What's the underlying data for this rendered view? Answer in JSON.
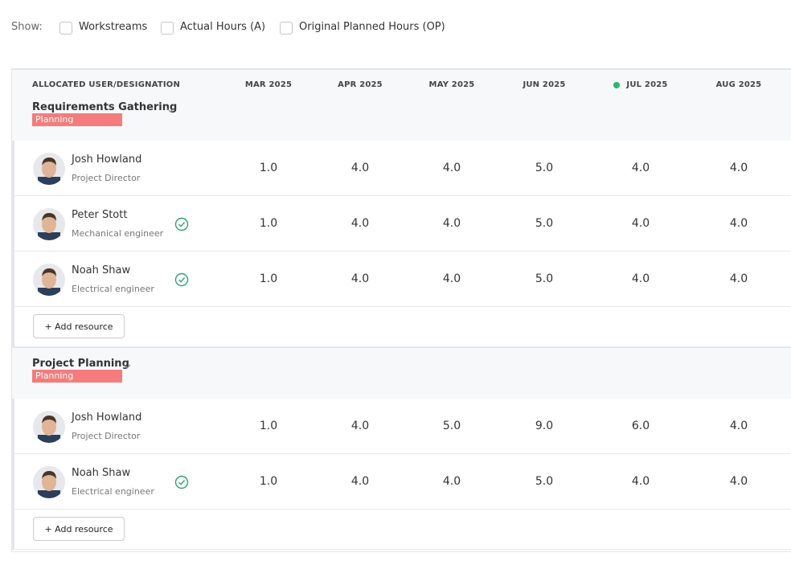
{
  "toolbar": {
    "label": "Show:",
    "options": [
      "Workstreams",
      "Actual Hours (A)",
      "Original Planned Hours (OP)"
    ]
  },
  "table": {
    "columns": [
      "ALLOCATED USER/DESIGNATION",
      "MAR 2025",
      "APR 2025",
      "MAY 2025",
      "JUN 2025",
      "JUL 2025",
      "AUG 2025"
    ],
    "groups": [
      {
        "name": "Requirements Gathering",
        "status": "Planning",
        "action": "+ Add resource",
        "rows": [
          {
            "name": "Josh Howland",
            "role": "Project Director",
            "verified": false,
            "hours": [
              "1.0",
              "4.0",
              "4.0",
              "5.0",
              "4.0",
              "4.0"
            ]
          },
          {
            "name": "Peter Stott",
            "role": "Mechanical engineer",
            "verified": true,
            "hours": [
              "1.0",
              "4.0",
              "4.0",
              "5.0",
              "4.0",
              "4.0"
            ]
          },
          {
            "name": "Noah Shaw",
            "role": "Electrical engineer",
            "verified": true,
            "hours": [
              "1.0",
              "4.0",
              "4.0",
              "5.0",
              "4.0",
              "4.0"
            ]
          }
        ]
      },
      {
        "name": "Project Planning",
        "status": "Planning",
        "action": "+ Add resource",
        "rows": [
          {
            "name": "Josh Howland",
            "role": "Project Director",
            "verified": false,
            "hours": [
              "1.0",
              "4.0",
              "5.0",
              "9.0",
              "6.0",
              "4.0"
            ]
          },
          {
            "name": "Noah Shaw",
            "role": "Electrical engineer",
            "verified": true,
            "hours": [
              "1.0",
              "4.0",
              "4.0",
              "5.0",
              "4.0",
              "4.0"
            ]
          }
        ]
      }
    ]
  }
}
